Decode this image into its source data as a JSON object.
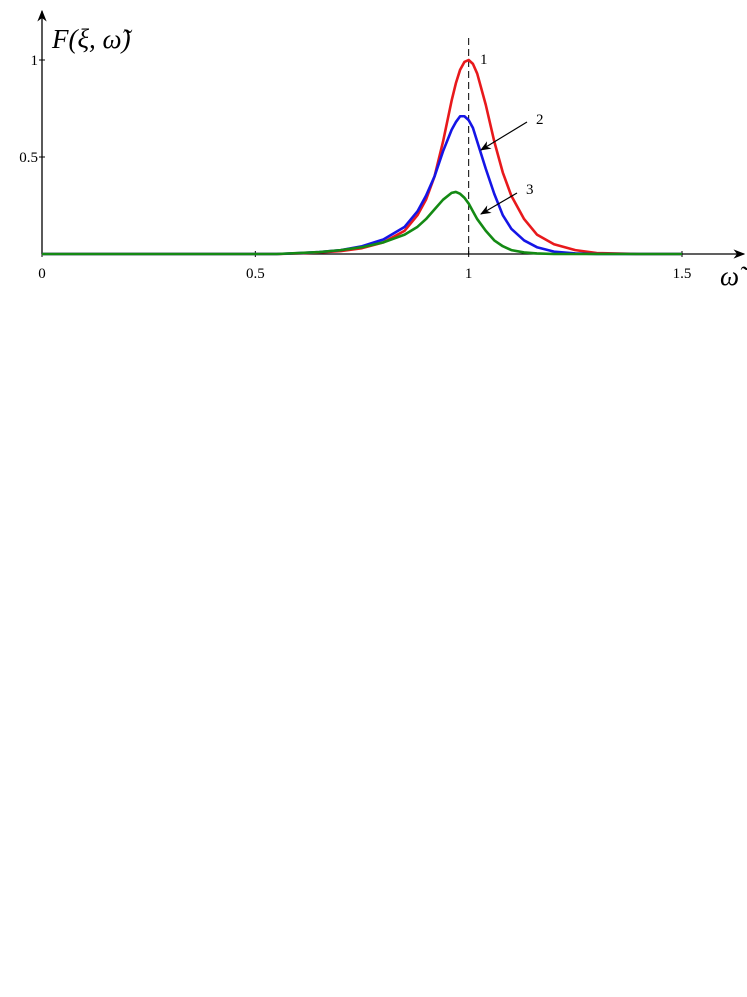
{
  "chart_data": {
    "type": "line",
    "y_label": "F(ξ, ω̃)",
    "x_label": "ω̃",
    "x": [
      0,
      0.1,
      0.2,
      0.3,
      0.4,
      0.5,
      0.55,
      0.6,
      0.65,
      0.7,
      0.75,
      0.8,
      0.85,
      0.88,
      0.9,
      0.92,
      0.94,
      0.96,
      0.97,
      0.98,
      0.99,
      1.0,
      1.01,
      1.02,
      1.04,
      1.06,
      1.08,
      1.1,
      1.13,
      1.16,
      1.2,
      1.25,
      1.3,
      1.4,
      1.5
    ],
    "series": [
      {
        "name": "1",
        "color": "#e8191c",
        "values": [
          0,
          0,
          0,
          0,
          0,
          0,
          0,
          0.003,
          0.008,
          0.015,
          0.03,
          0.06,
          0.12,
          0.2,
          0.28,
          0.4,
          0.58,
          0.79,
          0.88,
          0.95,
          0.99,
          1.0,
          0.98,
          0.93,
          0.77,
          0.58,
          0.42,
          0.3,
          0.18,
          0.1,
          0.05,
          0.02,
          0.005,
          0,
          0
        ]
      },
      {
        "name": "2",
        "color": "#1515e6",
        "values": [
          0,
          0,
          0,
          0,
          0,
          0,
          0,
          0.004,
          0.01,
          0.02,
          0.04,
          0.075,
          0.14,
          0.22,
          0.3,
          0.4,
          0.53,
          0.64,
          0.68,
          0.71,
          0.71,
          0.69,
          0.65,
          0.58,
          0.44,
          0.31,
          0.2,
          0.13,
          0.07,
          0.035,
          0.012,
          0.003,
          0,
          0,
          0
        ]
      },
      {
        "name": "3",
        "color": "#148a14",
        "values": [
          0,
          0,
          0,
          0,
          0,
          0,
          0,
          0.005,
          0.01,
          0.02,
          0.035,
          0.06,
          0.1,
          0.14,
          0.18,
          0.23,
          0.28,
          0.315,
          0.32,
          0.31,
          0.29,
          0.26,
          0.22,
          0.18,
          0.12,
          0.07,
          0.04,
          0.02,
          0.008,
          0.003,
          0,
          0,
          0,
          0,
          0
        ]
      }
    ],
    "reference_x": 1,
    "xlim": [
      0,
      1.65
    ],
    "ylim": [
      0,
      1.25
    ],
    "xticks": [
      0,
      0.5,
      1,
      1.5
    ],
    "yticks": [
      0.5,
      1
    ]
  }
}
